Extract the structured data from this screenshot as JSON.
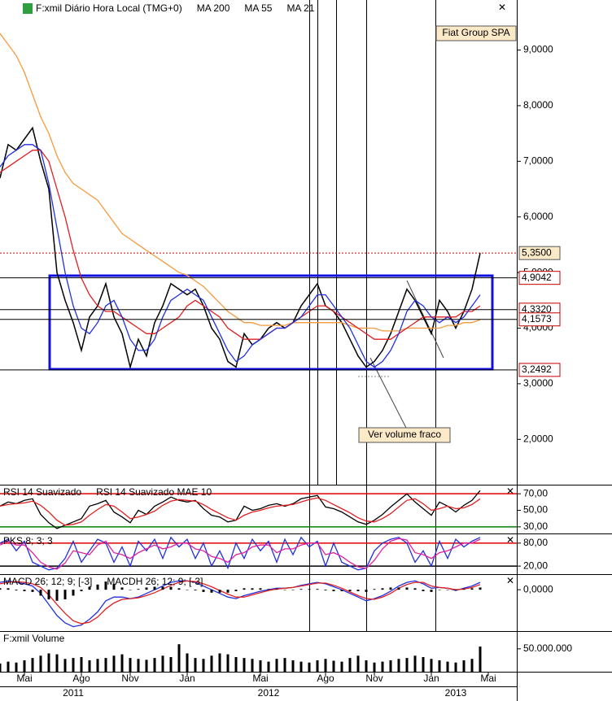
{
  "chart_data": [
    {
      "type": "line",
      "xlim": [
        0,
        63.5
      ],
      "ylim": [
        1.2,
        9.9
      ],
      "yticks": [
        {
          "value": 2,
          "label": "2,0000"
        },
        {
          "value": 3,
          "label": "3,0000"
        },
        {
          "value": 4,
          "label": "4,0000"
        },
        {
          "value": 5,
          "label": "5,0000"
        },
        {
          "value": 6,
          "label": "6,0000"
        },
        {
          "value": 7,
          "label": "7,0000"
        },
        {
          "value": 8,
          "label": "8,0000"
        },
        {
          "value": 9,
          "label": "9,0000"
        }
      ],
      "levels": [
        {
          "value": 5.35,
          "label": "5,3500",
          "color": "#c00000",
          "dashed": true
        },
        {
          "value": 4.9042,
          "label": "4,9042",
          "color": "#c00000",
          "dashed": false
        },
        {
          "value": 4.332,
          "label": "4,3320",
          "color": "#c00000",
          "dashed": false
        },
        {
          "value": 4.1573,
          "label": "4,1573",
          "color": "#c00000",
          "dashed": false
        },
        {
          "value": 3.2492,
          "label": "3,2492",
          "color": "#c00000",
          "dashed": false
        }
      ],
      "annotations": [
        "Fiat Group SPA",
        "Ver volume  fraco"
      ],
      "series": [
        {
          "name": "F:xmil Diário Hora Local (TMG+0)",
          "color": "#000000",
          "values": [
            6.7,
            7.3,
            7.2,
            7.4,
            7.6,
            7.0,
            6.5,
            5.0,
            4.5,
            4.1,
            3.6,
            4.2,
            4.4,
            4.8,
            4.2,
            3.9,
            3.3,
            3.8,
            3.5,
            4.1,
            4.4,
            4.8,
            4.7,
            4.6,
            4.7,
            4.4,
            4.0,
            3.8,
            3.4,
            3.3,
            3.9,
            3.7,
            3.8,
            4.0,
            4.1,
            4.0,
            4.1,
            4.4,
            4.6,
            4.8,
            4.4,
            4.3,
            4.1,
            3.8,
            3.5,
            3.3,
            3.4,
            3.6,
            3.9,
            4.3,
            4.7,
            4.5,
            4.2,
            3.9,
            4.5,
            4.3,
            4.0,
            4.3,
            4.7,
            5.35
          ]
        },
        {
          "name": "MA 200",
          "color": "#f59a3c",
          "values": [
            9.3,
            9.1,
            8.9,
            8.6,
            8.2,
            7.8,
            7.5,
            7.1,
            6.8,
            6.6,
            6.5,
            6.4,
            6.3,
            6.1,
            5.9,
            5.7,
            5.6,
            5.5,
            5.4,
            5.3,
            5.2,
            5.1,
            5.0,
            4.95,
            4.85,
            4.75,
            4.6,
            4.45,
            4.3,
            4.2,
            4.1,
            4.1,
            4.05,
            4.05,
            4.05,
            4.05,
            4.1,
            4.1,
            4.1,
            4.1,
            4.1,
            4.1,
            4.1,
            4.05,
            4.0,
            4.0,
            4.0,
            3.95,
            3.95,
            3.95,
            4.0,
            4.0,
            4.0,
            4.0,
            4.0,
            4.05,
            4.05,
            4.1,
            4.1,
            4.15
          ]
        },
        {
          "name": "MA 55",
          "color": "#e02020",
          "values": [
            6.8,
            6.9,
            7.0,
            7.1,
            7.2,
            7.2,
            7.0,
            6.5,
            6.0,
            5.4,
            4.9,
            4.6,
            4.4,
            4.3,
            4.3,
            4.2,
            4.1,
            4.0,
            3.9,
            3.9,
            4.0,
            4.1,
            4.2,
            4.4,
            4.5,
            4.4,
            4.3,
            4.2,
            4.0,
            3.9,
            3.8,
            3.8,
            3.8,
            3.9,
            4.0,
            4.0,
            4.1,
            4.2,
            4.3,
            4.4,
            4.4,
            4.3,
            4.2,
            4.1,
            4.0,
            3.9,
            3.8,
            3.8,
            3.8,
            3.9,
            4.0,
            4.1,
            4.2,
            4.2,
            4.2,
            4.2,
            4.2,
            4.3,
            4.3,
            4.4
          ]
        },
        {
          "name": "MA 21",
          "color": "#2030e0",
          "values": [
            6.9,
            7.1,
            7.2,
            7.3,
            7.3,
            7.2,
            6.6,
            5.8,
            5.0,
            4.4,
            4.0,
            3.9,
            4.1,
            4.4,
            4.5,
            4.2,
            3.8,
            3.6,
            3.6,
            3.8,
            4.2,
            4.5,
            4.6,
            4.7,
            4.6,
            4.5,
            4.2,
            3.9,
            3.6,
            3.4,
            3.5,
            3.7,
            3.8,
            3.9,
            4.0,
            4.0,
            4.1,
            4.2,
            4.4,
            4.6,
            4.6,
            4.4,
            4.2,
            4.0,
            3.7,
            3.4,
            3.3,
            3.4,
            3.6,
            3.9,
            4.3,
            4.5,
            4.4,
            4.2,
            4.1,
            4.2,
            4.1,
            4.2,
            4.4,
            4.6
          ]
        }
      ]
    },
    {
      "type": "line",
      "xlim": [
        0,
        63.5
      ],
      "ylim": [
        22,
        80
      ],
      "yticks": [
        {
          "value": 70,
          "label": "70,00"
        },
        {
          "value": 50,
          "label": "50,00"
        },
        {
          "value": 30,
          "label": "30,00"
        }
      ],
      "tick_colors": [
        "#e00000",
        null,
        "#008000"
      ],
      "series": [
        {
          "name": "RSI 14 Suavizado",
          "color": "#000000",
          "values": [
            55,
            60,
            58,
            62,
            64,
            45,
            35,
            28,
            32,
            36,
            40,
            55,
            58,
            62,
            48,
            42,
            35,
            50,
            45,
            55,
            60,
            66,
            62,
            60,
            62,
            52,
            44,
            42,
            36,
            38,
            55,
            50,
            52,
            56,
            58,
            55,
            58,
            64,
            66,
            68,
            54,
            52,
            48,
            42,
            36,
            33,
            38,
            45,
            54,
            62,
            70,
            60,
            52,
            44,
            60,
            55,
            48,
            56,
            62,
            74
          ]
        },
        {
          "name": "RSI 14 Suavizado MAE 10",
          "color": "#e02020",
          "values": [
            55,
            57,
            58,
            59,
            61,
            56,
            48,
            38,
            32,
            33,
            36,
            44,
            51,
            57,
            55,
            48,
            40,
            42,
            45,
            49,
            56,
            61,
            63,
            62,
            61,
            57,
            51,
            46,
            41,
            38,
            44,
            48,
            50,
            53,
            55,
            56,
            57,
            60,
            63,
            65,
            62,
            57,
            52,
            47,
            41,
            37,
            36,
            40,
            46,
            54,
            62,
            64,
            58,
            50,
            52,
            55,
            52,
            53,
            57,
            64
          ]
        }
      ]
    },
    {
      "type": "line",
      "xlim": [
        0,
        63.5
      ],
      "ylim": [
        -1,
        103
      ],
      "yticks": [
        {
          "value": 80,
          "label": "80,00"
        },
        {
          "value": 20,
          "label": "20,00"
        }
      ],
      "tick_colors": [
        "#e00000",
        "#000000"
      ],
      "series": [
        {
          "name": "PKS 8; 3; 3",
          "color": "#2030e0",
          "values": [
            80,
            90,
            60,
            85,
            30,
            20,
            10,
            15,
            40,
            85,
            30,
            60,
            90,
            80,
            30,
            70,
            20,
            85,
            60,
            90,
            40,
            95,
            70,
            90,
            40,
            80,
            20,
            60,
            15,
            80,
            40,
            90,
            60,
            85,
            30,
            90,
            50,
            95,
            70,
            85,
            20,
            80,
            30,
            20,
            10,
            15,
            60,
            80,
            90,
            95,
            80,
            30,
            60,
            20,
            85,
            40,
            90,
            70,
            85,
            95
          ]
        },
        {
          "color": "#e020a0",
          "values": [
            75,
            85,
            75,
            75,
            55,
            30,
            18,
            12,
            28,
            60,
            55,
            50,
            75,
            85,
            55,
            50,
            40,
            55,
            65,
            75,
            65,
            70,
            80,
            80,
            65,
            60,
            45,
            40,
            30,
            50,
            55,
            70,
            75,
            75,
            55,
            65,
            65,
            75,
            80,
            80,
            50,
            55,
            45,
            30,
            18,
            14,
            35,
            65,
            85,
            92,
            88,
            55,
            50,
            40,
            55,
            60,
            70,
            80,
            80,
            90
          ]
        }
      ]
    },
    {
      "type": "line",
      "xlim": [
        0,
        63.5
      ],
      "ylim": [
        -0.56,
        0.2
      ],
      "yticks": [
        {
          "value": 0,
          "label": "0,0000"
        }
      ],
      "series": [
        {
          "name": "MACD 26; 12; 9; [-3]",
          "color": "#2030e0",
          "values": [
            0.1,
            0.12,
            0.1,
            0.08,
            0.05,
            -0.05,
            -0.2,
            -0.35,
            -0.45,
            -0.5,
            -0.48,
            -0.4,
            -0.3,
            -0.15,
            -0.1,
            -0.1,
            -0.12,
            -0.1,
            -0.05,
            0,
            0.05,
            0.1,
            0.12,
            0.12,
            0.1,
            0.05,
            0,
            -0.05,
            -0.1,
            -0.12,
            -0.08,
            -0.05,
            -0.02,
            0,
            0.02,
            0.02,
            0.03,
            0.06,
            0.08,
            0.1,
            0.08,
            0.04,
            0,
            -0.05,
            -0.1,
            -0.15,
            -0.12,
            -0.08,
            -0.02,
            0.05,
            0.1,
            0.12,
            0.08,
            0.02,
            0.03,
            0.02,
            -0.01,
            0.02,
            0.05,
            0.1
          ]
        },
        {
          "color": "#e02020",
          "values": [
            0.08,
            0.1,
            0.11,
            0.1,
            0.08,
            0.03,
            -0.07,
            -0.2,
            -0.32,
            -0.42,
            -0.46,
            -0.44,
            -0.37,
            -0.26,
            -0.18,
            -0.13,
            -0.12,
            -0.11,
            -0.08,
            -0.04,
            0.01,
            0.06,
            0.1,
            0.12,
            0.11,
            0.08,
            0.04,
            -0.01,
            -0.06,
            -0.1,
            -0.1,
            -0.07,
            -0.04,
            -0.01,
            0.01,
            0.02,
            0.03,
            0.05,
            0.07,
            0.09,
            0.09,
            0.06,
            0.02,
            -0.03,
            -0.08,
            -0.12,
            -0.13,
            -0.1,
            -0.05,
            0.02,
            0.07,
            0.1,
            0.1,
            0.05,
            0.03,
            0.02,
            0.0,
            0.01,
            0.03,
            0.07
          ]
        },
        {
          "name": "MACDH 26; 12; 9; [-3]",
          "color": "#000000",
          "type": "bar",
          "values": [
            0.02,
            0.02,
            -0.01,
            -0.02,
            -0.03,
            -0.08,
            -0.13,
            -0.15,
            -0.13,
            -0.08,
            -0.02,
            0.04,
            0.07,
            0.11,
            0.08,
            0.03,
            0,
            0.01,
            0.03,
            0.04,
            0.04,
            0.04,
            0.02,
            0,
            -0.01,
            -0.03,
            -0.04,
            -0.04,
            -0.04,
            -0.02,
            0.02,
            0.02,
            0.02,
            0.01,
            0.01,
            0,
            0,
            0.01,
            0.01,
            0.01,
            -0.01,
            -0.02,
            -0.02,
            -0.02,
            -0.02,
            -0.03,
            0.01,
            0.02,
            0.03,
            0.03,
            0.03,
            0.02,
            -0.02,
            -0.03,
            0,
            0,
            -0.01,
            0.01,
            0.02,
            0.03
          ]
        }
      ]
    },
    {
      "type": "bar",
      "xlim": [
        0,
        63.5
      ],
      "ylim": [
        0,
        87000000
      ],
      "yticks": [
        {
          "value": 50000000,
          "label": "50.000.000"
        }
      ],
      "xticks": [
        {
          "value": 3,
          "label": "Mai"
        },
        {
          "value": 10,
          "label": "Ago"
        },
        {
          "value": 16,
          "label": "Nov"
        },
        {
          "value": 23,
          "label": "Jan"
        },
        {
          "value": 32,
          "label": "Mai"
        },
        {
          "value": 40,
          "label": "Ago"
        },
        {
          "value": 46,
          "label": "Nov"
        },
        {
          "value": 53,
          "label": "Jan"
        },
        {
          "value": 60,
          "label": "Mai"
        }
      ],
      "year_labels": [
        {
          "value": 9,
          "label": "2011"
        },
        {
          "value": 33,
          "label": "2012"
        },
        {
          "value": 56,
          "label": "2013"
        }
      ],
      "series": [
        {
          "name": "F:xmil Volume",
          "color": "#000000",
          "type": "bar",
          "values": [
            18000000,
            22000000,
            20000000,
            25000000,
            30000000,
            35000000,
            40000000,
            38000000,
            28000000,
            30000000,
            32000000,
            25000000,
            28000000,
            30000000,
            35000000,
            38000000,
            30000000,
            28000000,
            26000000,
            30000000,
            35000000,
            32000000,
            60000000,
            40000000,
            30000000,
            28000000,
            35000000,
            40000000,
            38000000,
            32000000,
            30000000,
            28000000,
            25000000,
            22000000,
            28000000,
            30000000,
            25000000,
            22000000,
            20000000,
            25000000,
            28000000,
            24000000,
            22000000,
            30000000,
            35000000,
            25000000,
            20000000,
            22000000,
            25000000,
            28000000,
            30000000,
            35000000,
            32000000,
            28000000,
            25000000,
            22000000,
            20000000,
            25000000,
            28000000,
            55000000
          ]
        }
      ]
    }
  ]
}
